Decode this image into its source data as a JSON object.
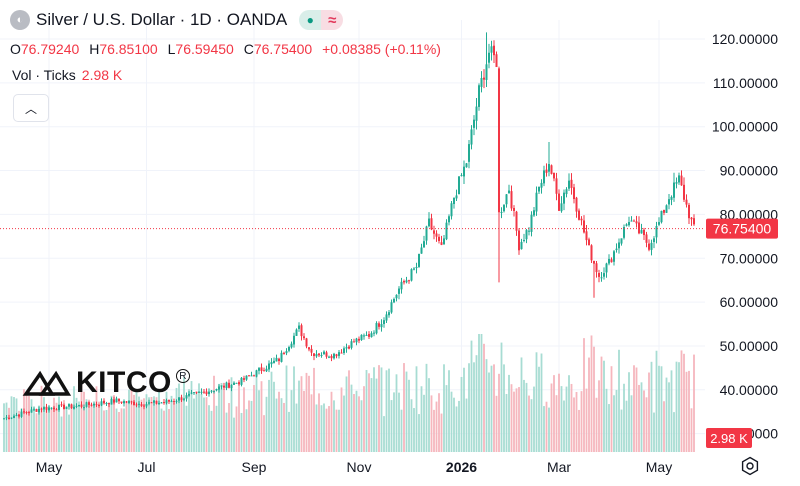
{
  "header": {
    "symbol_title": "Silver / U.S. Dollar · 1D · OANDA",
    "badge_open_icon": "market-open-dot-icon",
    "badge_wave_icon": "approx-wave-icon"
  },
  "ohlc": {
    "open_label": "O",
    "open": "76.79240",
    "high_label": "H",
    "high": "76.85100",
    "low_label": "L",
    "low": "76.59450",
    "close_label": "C",
    "close": "76.75400",
    "change": "+0.08385 (+0.11%)"
  },
  "volume": {
    "label": "Vol · Ticks",
    "value": "2.98 K"
  },
  "watermark": {
    "text": "KITCO",
    "reg_mark": "R"
  },
  "colors": {
    "up": "#22ab94",
    "down": "#f23645",
    "vol_up": "#a7dcd3",
    "vol_down": "#f6b6bd"
  },
  "chart_data": {
    "type": "candlestick",
    "title": "Silver / U.S. Dollar · 1D · OANDA",
    "ylim": [
      30,
      122
    ],
    "y_ticks": [
      "120.00000",
      "110.00000",
      "100.00000",
      "90.00000",
      "80.00000",
      "70.00000",
      "60.00000",
      "50.00000",
      "40.00000",
      "30.00000"
    ],
    "y_tick_values": [
      120,
      110,
      100,
      90,
      80,
      70,
      60,
      50,
      40,
      30
    ],
    "x_labels": [
      "May",
      "Jul",
      "Sep",
      "Nov",
      "2026",
      "Mar",
      "May"
    ],
    "x_label_index": [
      6,
      45,
      88,
      130,
      171,
      210,
      250
    ],
    "last_price_label": "76.75400",
    "last_price": 76.754,
    "volume_label": "2.98 K",
    "series_close_anchors": [
      [
        0,
        33.5
      ],
      [
        15,
        35.8
      ],
      [
        30,
        36.3
      ],
      [
        45,
        37.5
      ],
      [
        55,
        36.8
      ],
      [
        65,
        37.2
      ],
      [
        80,
        39.5
      ],
      [
        95,
        42.0
      ],
      [
        110,
        47.0
      ],
      [
        118,
        54.0
      ],
      [
        123,
        48.5
      ],
      [
        132,
        48.0
      ],
      [
        140,
        51.0
      ],
      [
        146,
        52.5
      ],
      [
        152,
        56.5
      ],
      [
        158,
        63.0
      ],
      [
        165,
        68.0
      ],
      [
        170,
        78.0
      ],
      [
        175,
        72.0
      ],
      [
        180,
        84.0
      ],
      [
        185,
        92.0
      ],
      [
        190,
        108.0
      ],
      [
        194,
        117.0
      ],
      [
        197,
        115.0
      ],
      [
        198,
        80.0
      ],
      [
        202,
        86.0
      ],
      [
        206,
        73.0
      ],
      [
        210,
        77.0
      ],
      [
        214,
        86.0
      ],
      [
        218,
        92.0
      ],
      [
        222,
        82.0
      ],
      [
        226,
        88.0
      ],
      [
        230,
        80.0
      ],
      [
        234,
        72.0
      ],
      [
        238,
        66.0
      ],
      [
        242,
        69.0
      ],
      [
        246,
        74.0
      ],
      [
        250,
        79.0
      ],
      [
        254,
        76.0
      ],
      [
        258,
        73.0
      ],
      [
        262,
        78.0
      ],
      [
        266,
        84.0
      ],
      [
        270,
        88.0
      ],
      [
        273,
        82.0
      ],
      [
        276,
        76.5
      ]
    ],
    "volume_range_k": [
      0.8,
      5.0
    ]
  }
}
